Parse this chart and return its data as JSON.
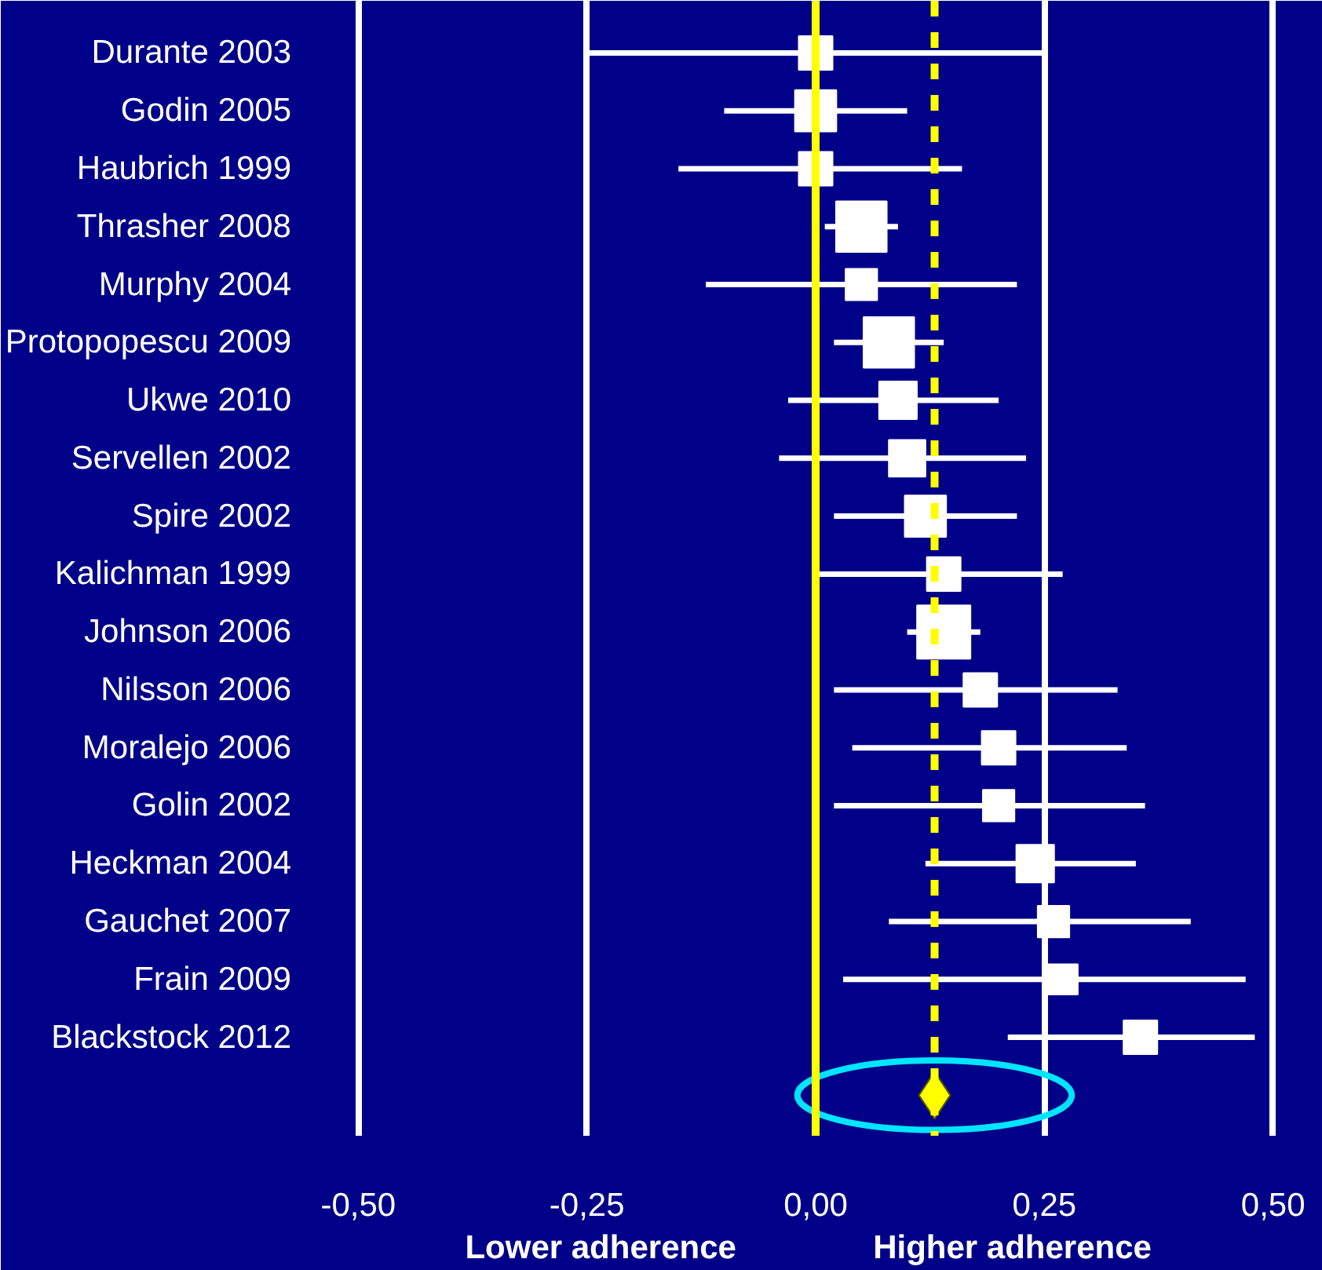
{
  "chart_data": {
    "type": "bubble",
    "orientation": "horizontal",
    "marker": "square",
    "categories": [
      "Durante 2003",
      "Godin 2005",
      "Haubrich 1999",
      "Thrasher 2008",
      "Murphy 2004",
      "Protopopescu 2009",
      "Ukwe 2010",
      "Servellen 2002",
      "Spire 2002",
      "Kalichman 1999",
      "Johnson 2006",
      "Nilsson 2006",
      "Moralejo 2006",
      "Golin 2002",
      "Heckman 2004",
      "Gauchet 2007",
      "Frain 2009",
      "Blackstock 2012",
      null
    ],
    "series": [
      {
        "color": "#ffffff",
        "values": [
          0.0,
          0.0,
          0.0,
          0.05,
          0.05,
          0.08,
          0.09,
          0.1,
          0.12,
          0.14,
          0.14,
          0.18,
          0.2,
          0.2,
          0.24,
          0.26,
          0.27,
          0.355,
          null
        ],
        "sizes": [
          0.4,
          0.6,
          0.4,
          0.9,
          0.35,
          0.9,
          0.5,
          0.47,
          0.6,
          0.4,
          1.0,
          0.4,
          0.4,
          0.35,
          0.5,
          0.35,
          0.32,
          0.4,
          null
        ],
        "errors": [
          [
            -0.25,
            0.25
          ],
          [
            -0.1,
            0.1
          ],
          [
            -0.15,
            0.16
          ],
          [
            0.01,
            0.09
          ],
          [
            -0.12,
            0.22
          ],
          [
            0.02,
            0.14
          ],
          [
            -0.03,
            0.2
          ],
          [
            -0.04,
            0.23
          ],
          [
            0.02,
            0.22
          ],
          [
            0.0,
            0.27
          ],
          [
            0.1,
            0.18
          ],
          [
            0.02,
            0.33
          ],
          [
            0.04,
            0.34
          ],
          [
            0.02,
            0.36
          ],
          [
            0.12,
            0.35
          ],
          [
            0.08,
            0.41
          ],
          [
            0.03,
            0.47
          ],
          [
            0.21,
            0.48
          ],
          null
        ]
      },
      {
        "type": "scatter",
        "marker": "diamond",
        "color": "#ffff00",
        "values": [
          null,
          null,
          null,
          null,
          null,
          null,
          null,
          null,
          null,
          null,
          null,
          null,
          null,
          null,
          null,
          null,
          null,
          null,
          0.13
        ]
      }
    ],
    "xlim": [
      -0.52,
      0.52
    ],
    "xticks": [
      {
        "value": -0.5,
        "label": "-0,50"
      },
      {
        "value": -0.25,
        "label": "-0,25"
      },
      {
        "value": 0,
        "label": "0,00"
      },
      {
        "value": 0.25,
        "label": "0,25"
      },
      {
        "value": 0.5,
        "label": "0,50"
      }
    ],
    "grid": "x",
    "ref_lines": [
      {
        "axis": "x",
        "value": 0,
        "color": "#ffff00",
        "line_style": "solid"
      },
      {
        "axis": "x",
        "value": 0.13,
        "color": "#ffff00",
        "line_style": "dashed"
      }
    ],
    "annotations": [
      "Lower adherence",
      "Higher adherence"
    ]
  }
}
